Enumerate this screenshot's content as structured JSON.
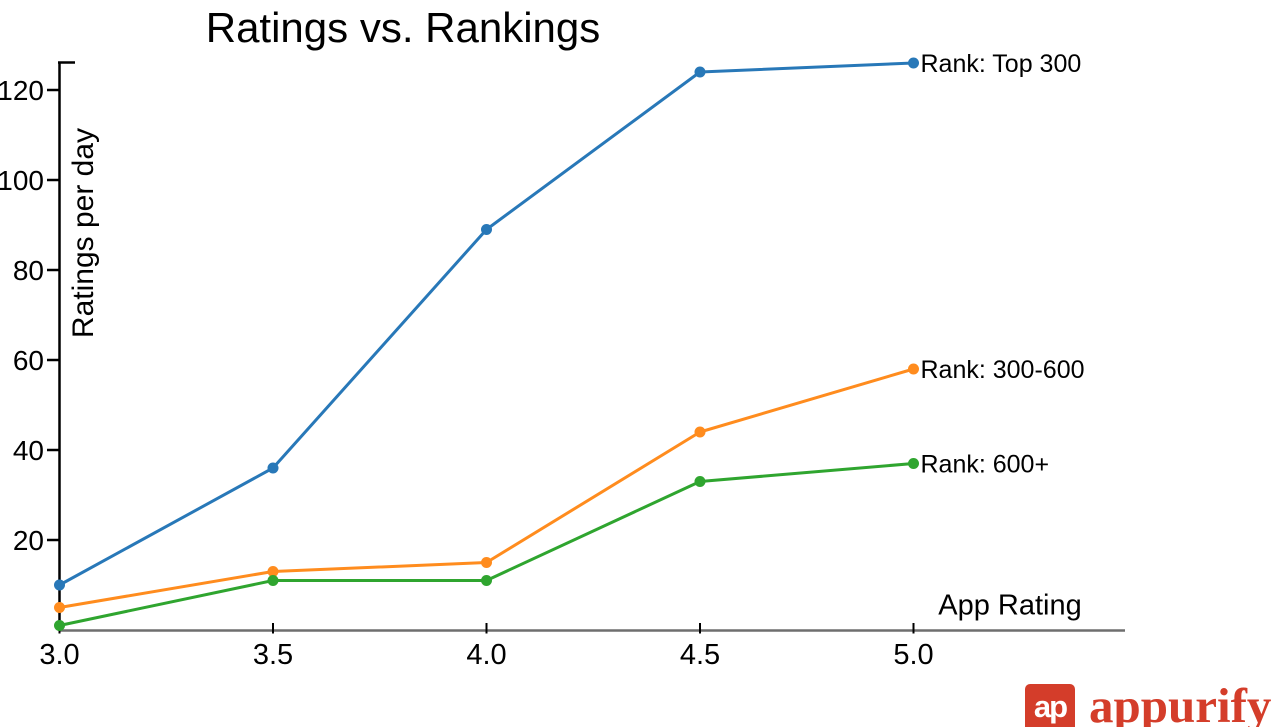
{
  "chart_data": {
    "type": "line",
    "title": "Ratings vs. Rankings",
    "xlabel": "App Rating",
    "ylabel": "Ratings per day",
    "x": [
      3.0,
      3.5,
      4.0,
      4.5,
      5.0
    ],
    "x_tick_labels": [
      "3.0",
      "3.5",
      "4.0",
      "4.5",
      "5.0"
    ],
    "y_ticks": [
      20,
      40,
      60,
      80,
      100,
      120
    ],
    "xlim": [
      3.0,
      5.25
    ],
    "ylim": [
      0,
      126
    ],
    "grid": false,
    "legend_position": "labels-at-line-ends",
    "marker": "circle",
    "series": [
      {
        "name": "Rank: Top 300",
        "color": "#2878b8",
        "values": [
          10,
          36,
          89,
          124,
          126
        ]
      },
      {
        "name": "Rank: 300-600",
        "color": "#ff8c1e",
        "values": [
          5,
          13,
          15,
          44,
          58
        ]
      },
      {
        "name": "Rank: 600+",
        "color": "#2fa52f",
        "values": [
          1,
          11,
          11,
          33,
          37
        ]
      }
    ]
  },
  "logo": {
    "monogram": "ap",
    "wordmark": "appurify",
    "brand_color": "#d43d2a"
  }
}
